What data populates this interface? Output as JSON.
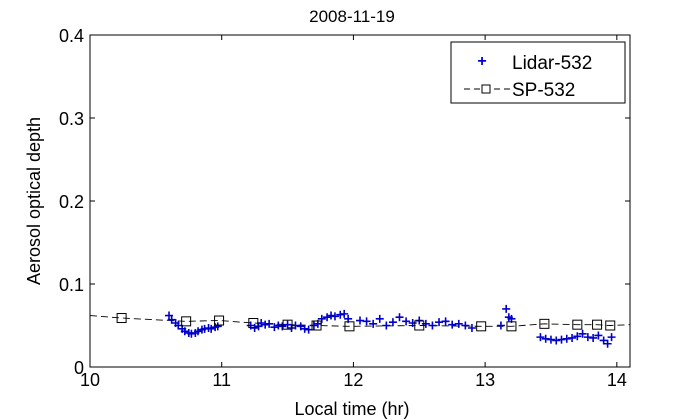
{
  "chart_data": {
    "type": "line",
    "title": "2008-11-19",
    "xlabel": "Local time (hr)",
    "ylabel": "Aerosol optical depth",
    "xlim": [
      10,
      14.1
    ],
    "ylim": [
      0,
      0.4
    ],
    "xticks": [
      10,
      11,
      12,
      13,
      14
    ],
    "xtick_labels": [
      "10",
      "11",
      "12",
      "13",
      "14"
    ],
    "yticks": [
      0,
      0.1,
      0.2,
      0.3,
      0.4
    ],
    "ytick_labels": [
      "0",
      "0.1",
      "0.2",
      "0.3",
      "0.4"
    ],
    "grid": false,
    "legend_position": "top-right",
    "series": [
      {
        "name": "Lidar-532",
        "marker": "+",
        "color": "#0000cc",
        "line": "none",
        "x": [
          10.6,
          10.62,
          10.65,
          10.67,
          10.7,
          10.72,
          10.75,
          10.77,
          10.8,
          10.82,
          10.85,
          10.87,
          10.9,
          10.92,
          10.95,
          10.97,
          11.22,
          11.25,
          11.28,
          11.3,
          11.33,
          11.36,
          11.4,
          11.43,
          11.46,
          11.5,
          11.53,
          11.56,
          11.6,
          11.63,
          11.66,
          11.7,
          11.73,
          11.76,
          11.8,
          11.83,
          11.86,
          11.9,
          11.93,
          11.96,
          12.05,
          12.1,
          12.15,
          12.2,
          12.25,
          12.3,
          12.35,
          12.4,
          12.45,
          12.5,
          12.55,
          12.6,
          12.65,
          12.7,
          12.75,
          12.8,
          12.85,
          12.9,
          13.12,
          13.16,
          13.18,
          13.2,
          13.42,
          13.46,
          13.5,
          13.54,
          13.58,
          13.62,
          13.66,
          13.7,
          13.74,
          13.78,
          13.82,
          13.86,
          13.9,
          13.93,
          13.96
        ],
        "y": [
          0.062,
          0.057,
          0.053,
          0.05,
          0.046,
          0.043,
          0.041,
          0.04,
          0.041,
          0.043,
          0.045,
          0.046,
          0.047,
          0.046,
          0.048,
          0.049,
          0.05,
          0.047,
          0.049,
          0.053,
          0.051,
          0.052,
          0.048,
          0.05,
          0.049,
          0.051,
          0.047,
          0.05,
          0.049,
          0.046,
          0.045,
          0.05,
          0.052,
          0.058,
          0.06,
          0.062,
          0.061,
          0.063,
          0.064,
          0.058,
          0.056,
          0.055,
          0.052,
          0.058,
          0.05,
          0.054,
          0.06,
          0.055,
          0.053,
          0.056,
          0.052,
          0.05,
          0.054,
          0.055,
          0.051,
          0.052,
          0.05,
          0.047,
          0.05,
          0.07,
          0.06,
          0.058,
          0.036,
          0.034,
          0.033,
          0.032,
          0.033,
          0.034,
          0.035,
          0.037,
          0.04,
          0.036,
          0.035,
          0.038,
          0.032,
          0.028,
          0.036
        ]
      },
      {
        "name": "SP-532",
        "marker": "square",
        "color": "#000000",
        "line": "dashed",
        "x": [
          10,
          10.24,
          10.73,
          10.98,
          11.24,
          11.5,
          11.72,
          11.97,
          12.5,
          12.97,
          13.2,
          13.45,
          13.7,
          13.85,
          13.95,
          14.1
        ],
        "y": [
          0.062,
          0.059,
          0.055,
          0.056,
          0.053,
          0.051,
          0.05,
          0.049,
          0.05,
          0.049,
          0.049,
          0.052,
          0.051,
          0.051,
          0.05,
          0.051
        ]
      }
    ]
  }
}
